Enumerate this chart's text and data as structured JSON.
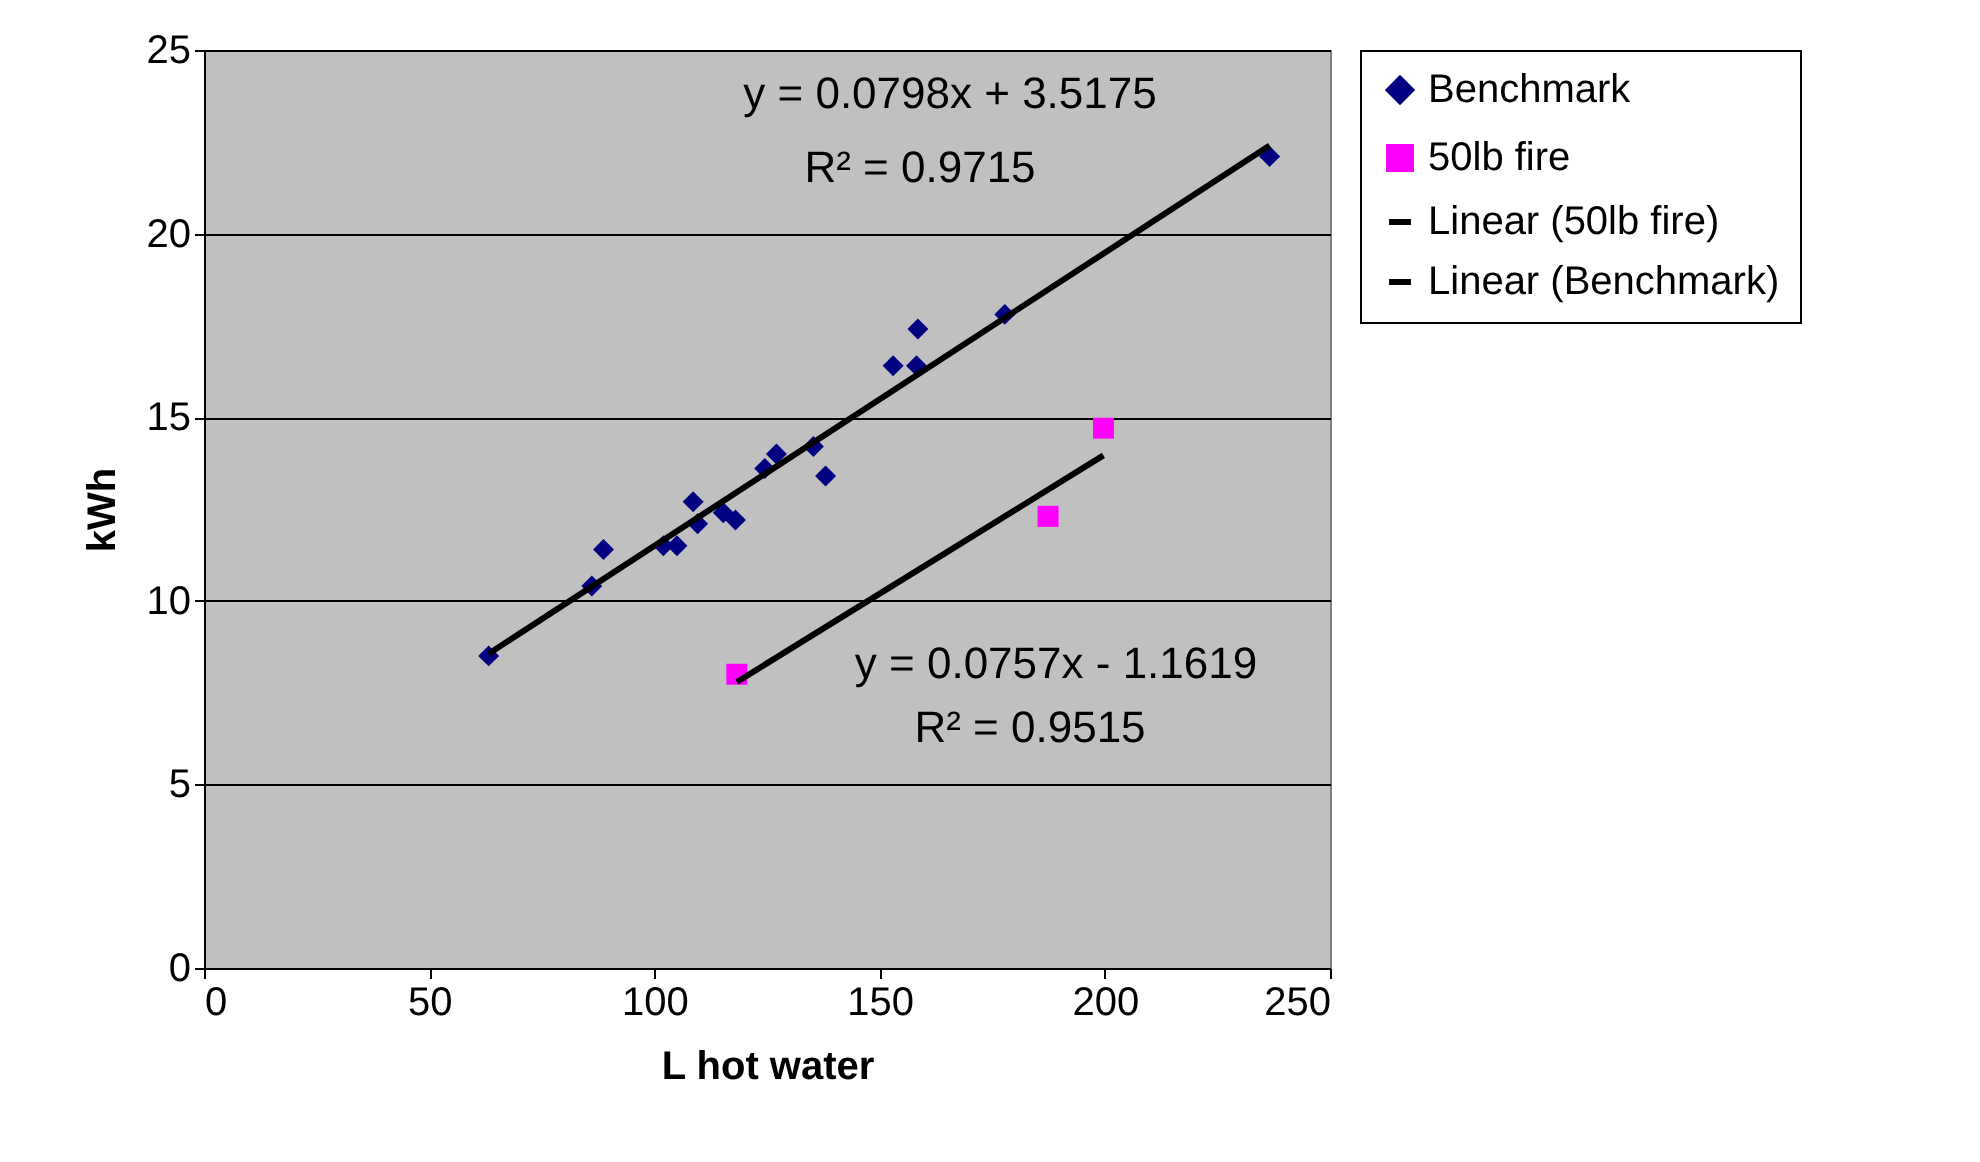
{
  "chart_data": {
    "type": "scatter",
    "xlabel": "L hot water",
    "ylabel": "kWh",
    "xlim": [
      0,
      250
    ],
    "xticks": [
      0,
      50,
      100,
      150,
      200,
      250
    ],
    "ylim": [
      0,
      25
    ],
    "yticks": [
      0,
      5,
      10,
      15,
      20,
      25
    ],
    "grid": "y",
    "legend": "right",
    "series": [
      {
        "name": "Benchmark",
        "color": "#000080",
        "marker": "diamond",
        "x": [
          63.2,
          86.1,
          88.7,
          102,
          105,
          108.6,
          109.6,
          115.3,
          118,
          124.5,
          127.1,
          135.3,
          138,
          153,
          158.2,
          158.5,
          177.8,
          236.6
        ],
        "values": [
          8.5,
          10.4,
          11.4,
          11.5,
          11.5,
          12.7,
          12.1,
          12.4,
          12.2,
          13.6,
          14.0,
          14.2,
          13.4,
          16.4,
          16.4,
          17.4,
          17.8,
          22.1
        ]
      },
      {
        "name": "50lb fire",
        "color": "#ff00ff",
        "marker": "square",
        "x": [
          118.3,
          187.4,
          199.7
        ],
        "values": [
          8.0,
          12.3,
          14.7
        ]
      },
      {
        "name": "Linear (50lb fire)",
        "type": "line",
        "color": "#000000",
        "x": [
          118.3,
          199.7
        ],
        "values": [
          7.79,
          13.96
        ]
      },
      {
        "name": "Linear (Benchmark)",
        "type": "line",
        "color": "#000000",
        "x": [
          63.2,
          236.6
        ],
        "values": [
          8.56,
          22.4
        ]
      }
    ],
    "annotations": [
      "y = 0.0798x + 3.5175",
      "R² = 0.9715",
      "y = 0.0757x - 1.1619",
      "R² = 0.9515"
    ]
  }
}
